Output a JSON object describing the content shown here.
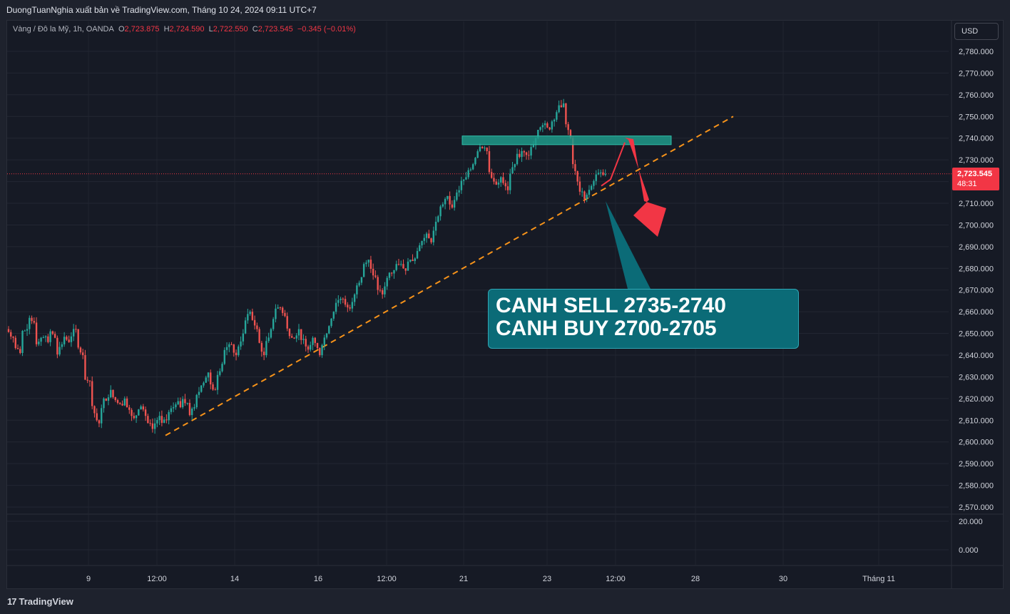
{
  "header": {
    "publisher_line": "DuongTuanNghia xuất bản về TradingView.com, Tháng 10 24, 2024 09:11 UTC+7"
  },
  "legend": {
    "symbol": "Vàng / Đô la Mỹ, 1h, OANDA",
    "o_label": "O",
    "o_value": "2,723.875",
    "h_label": "H",
    "h_value": "2,724.590",
    "l_label": "L",
    "l_value": "2,722.550",
    "c_label": "C",
    "c_value": "2,723.545",
    "change": "−0.345 (−0.01%)"
  },
  "currency_button": "USD",
  "current_price": {
    "value": "2,723.545",
    "countdown": "48:31"
  },
  "annotation": {
    "line1": "CANH SELL 2735-2740",
    "line2": "CANH BUY 2700-2705"
  },
  "footer": {
    "brand": "TradingView",
    "logo_mark": "17"
  },
  "colors": {
    "up": "#26a69a",
    "down": "#ef5350",
    "trendline": "#f7931a",
    "zone": "#1f9a8a",
    "arrow": "#f23645",
    "annotation_bg": "#0b6b77"
  },
  "chart_data": {
    "type": "candlestick",
    "symbol": "XAUUSD",
    "timeframe": "1h",
    "y_ticks": [
      "2,780.000",
      "2,770.000",
      "2,760.000",
      "2,750.000",
      "2,740.000",
      "2,730.000",
      "2,720.000",
      "2,710.000",
      "2,700.000",
      "2,690.000",
      "2,680.000",
      "2,670.000",
      "2,660.000",
      "2,650.000",
      "2,640.000",
      "2,630.000",
      "2,620.000",
      "2,610.000",
      "2,600.000",
      "2,590.000",
      "2,580.000",
      "2,570.000"
    ],
    "ylim": [
      2566,
      2782
    ],
    "sub_pane_ticks": [
      "20.000",
      "0.000"
    ],
    "x_ticks": [
      "9",
      "12:00",
      "14",
      "16",
      "12:00",
      "21",
      "23",
      "12:00",
      "28",
      "30",
      "Tháng 11"
    ],
    "price_path": [
      [
        2652,
        2648
      ],
      [
        2644,
        2641
      ],
      [
        2650,
        2652
      ],
      [
        2660,
        2655
      ],
      [
        2645,
        2648
      ],
      [
        2650,
        2646
      ],
      [
        2652,
        2648
      ],
      [
        2640,
        2645
      ],
      [
        2650,
        2646
      ],
      [
        2648,
        2652
      ],
      [
        2645,
        2640
      ],
      [
        2630,
        2628
      ],
      [
        2620,
        2610
      ],
      [
        2605,
        2620
      ],
      [
        2618,
        2624
      ],
      [
        2622,
        2618
      ],
      [
        2615,
        2620
      ],
      [
        2618,
        2612
      ],
      [
        2608,
        2615
      ],
      [
        2620,
        2612
      ],
      [
        2610,
        2606
      ],
      [
        2607,
        2612
      ],
      [
        2608,
        2610
      ],
      [
        2612,
        2616
      ],
      [
        2620,
        2616
      ],
      [
        2622,
        2618
      ],
      [
        2612,
        2616
      ],
      [
        2618,
        2626
      ],
      [
        2625,
        2632
      ],
      [
        2628,
        2624
      ],
      [
        2630,
        2636
      ],
      [
        2640,
        2645
      ],
      [
        2646,
        2640
      ],
      [
        2642,
        2650
      ],
      [
        2655,
        2660
      ],
      [
        2658,
        2652
      ],
      [
        2648,
        2640
      ],
      [
        2644,
        2652
      ],
      [
        2656,
        2662
      ],
      [
        2664,
        2658
      ],
      [
        2654,
        2648
      ],
      [
        2645,
        2652
      ],
      [
        2650,
        2644
      ],
      [
        2642,
        2648
      ],
      [
        2648,
        2640
      ],
      [
        2644,
        2650
      ],
      [
        2652,
        2660
      ],
      [
        2664,
        2666
      ],
      [
        2668,
        2662
      ],
      [
        2660,
        2668
      ],
      [
        2672,
        2676
      ],
      [
        2680,
        2684
      ],
      [
        2682,
        2676
      ],
      [
        2672,
        2668
      ],
      [
        2670,
        2678
      ],
      [
        2676,
        2682
      ],
      [
        2684,
        2680
      ],
      [
        2678,
        2684
      ],
      [
        2682,
        2688
      ],
      [
        2690,
        2694
      ],
      [
        2696,
        2692
      ],
      [
        2694,
        2704
      ],
      [
        2706,
        2712
      ],
      [
        2714,
        2708
      ],
      [
        2710,
        2716
      ],
      [
        2718,
        2722
      ],
      [
        2724,
        2728
      ],
      [
        2730,
        2736
      ],
      [
        2738,
        2734
      ],
      [
        2725,
        2720
      ],
      [
        2718,
        2722
      ],
      [
        2720,
        2716
      ],
      [
        2722,
        2728
      ],
      [
        2730,
        2734
      ],
      [
        2736,
        2732
      ],
      [
        2734,
        2740
      ],
      [
        2742,
        2746
      ],
      [
        2748,
        2744
      ],
      [
        2746,
        2752
      ],
      [
        2754,
        2756
      ],
      [
        2750,
        2740
      ],
      [
        2732,
        2720
      ],
      [
        2718,
        2712
      ],
      [
        2714,
        2718
      ],
      [
        2720,
        2724
      ],
      [
        2723,
        2723.5
      ]
    ],
    "current_price": 2723.545,
    "resistance_zone": [
      2737,
      2741
    ],
    "trendline": {
      "from_price": 2603,
      "to_price": 2750,
      "style": "dashed"
    },
    "projection": {
      "from_price": 2718,
      "peak_price": 2738,
      "target_price": 2703
    }
  }
}
